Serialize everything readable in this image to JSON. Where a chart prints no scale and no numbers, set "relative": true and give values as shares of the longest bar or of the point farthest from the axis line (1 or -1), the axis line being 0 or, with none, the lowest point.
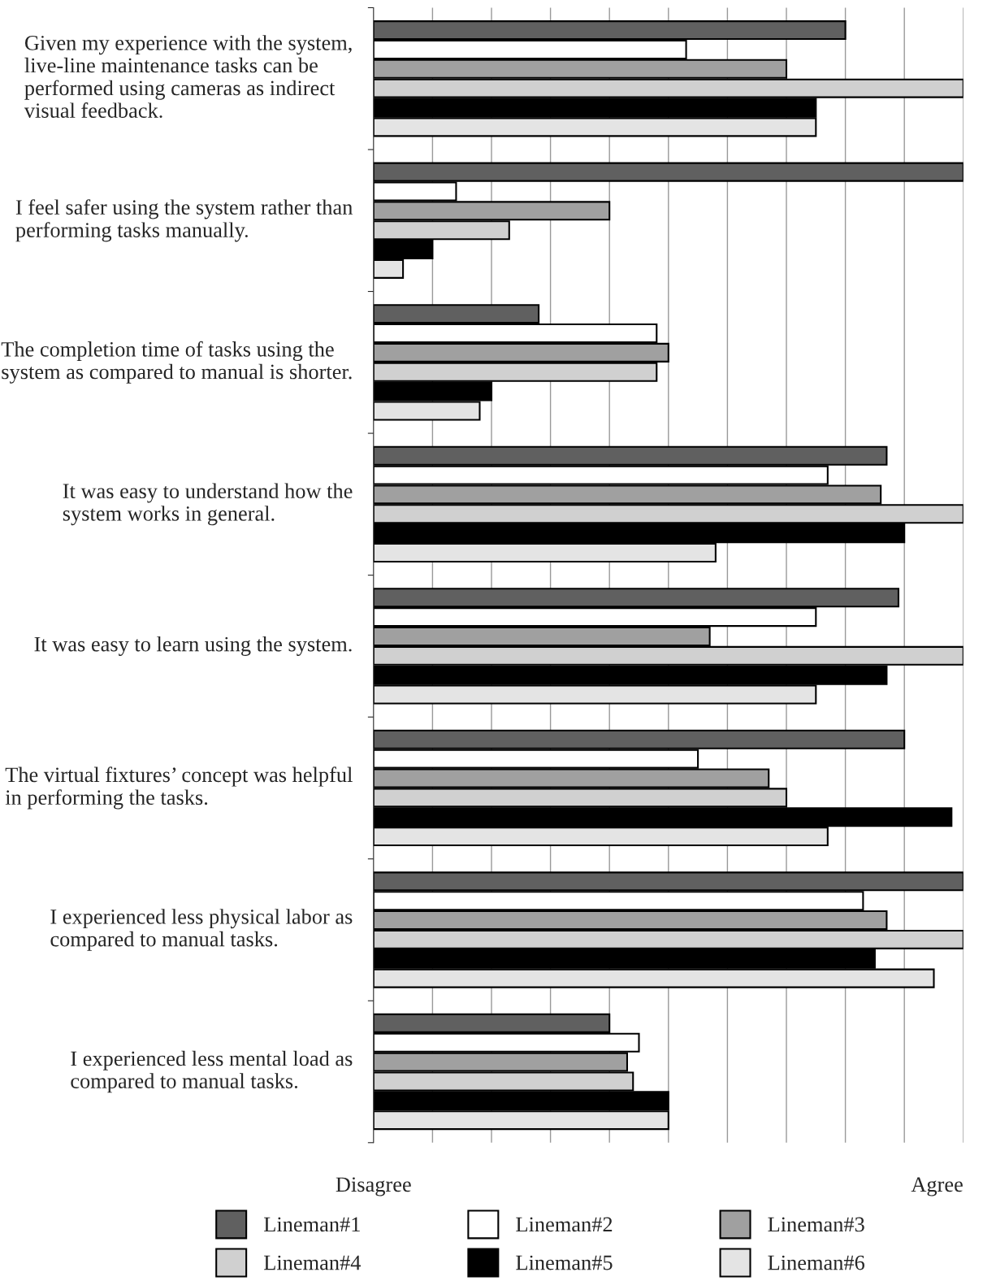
{
  "chart_data": {
    "type": "bar",
    "orientation": "horizontal",
    "categories": [
      "Given my experience with the system, live-line maintenance tasks can be performed using cameras as indirect visual feedback.",
      "I feel safer using the system rather than performing tasks manually.",
      "The completion time of tasks using the system as compared to manual is shorter.",
      "It was easy to understand how the system works in general.",
      "It was easy to learn using the system.",
      "The virtual fixtures’ concept was helpful in performing the tasks.",
      "I experienced less physical labor as compared to manual tasks.",
      "I experienced less mental load as compared to manual tasks."
    ],
    "series": [
      {
        "name": "Lineman#1",
        "color": "#606060",
        "values": [
          0.8,
          1.0,
          0.28,
          0.87,
          0.89,
          0.9,
          1.0,
          0.4
        ]
      },
      {
        "name": "Lineman#2",
        "color": "#ffffff",
        "values": [
          0.53,
          0.14,
          0.48,
          0.77,
          0.75,
          0.55,
          0.83,
          0.45
        ]
      },
      {
        "name": "Lineman#3",
        "color": "#a0a0a0",
        "values": [
          0.7,
          0.4,
          0.5,
          0.86,
          0.57,
          0.67,
          0.87,
          0.43
        ]
      },
      {
        "name": "Lineman#4",
        "color": "#d0d0d0",
        "values": [
          1.0,
          0.23,
          0.48,
          1.0,
          1.0,
          0.7,
          1.0,
          0.44
        ]
      },
      {
        "name": "Lineman#5",
        "color": "#000000",
        "values": [
          0.75,
          0.1,
          0.2,
          0.9,
          0.87,
          0.98,
          0.85,
          0.5
        ]
      },
      {
        "name": "Lineman#6",
        "color": "#e4e4e4",
        "values": [
          0.75,
          0.05,
          0.18,
          0.58,
          0.75,
          0.77,
          0.95,
          0.5
        ]
      }
    ],
    "relative": true,
    "annotations": [
      "Disagree",
      "Agree"
    ],
    "grid": "x",
    "legend": "bottom"
  }
}
